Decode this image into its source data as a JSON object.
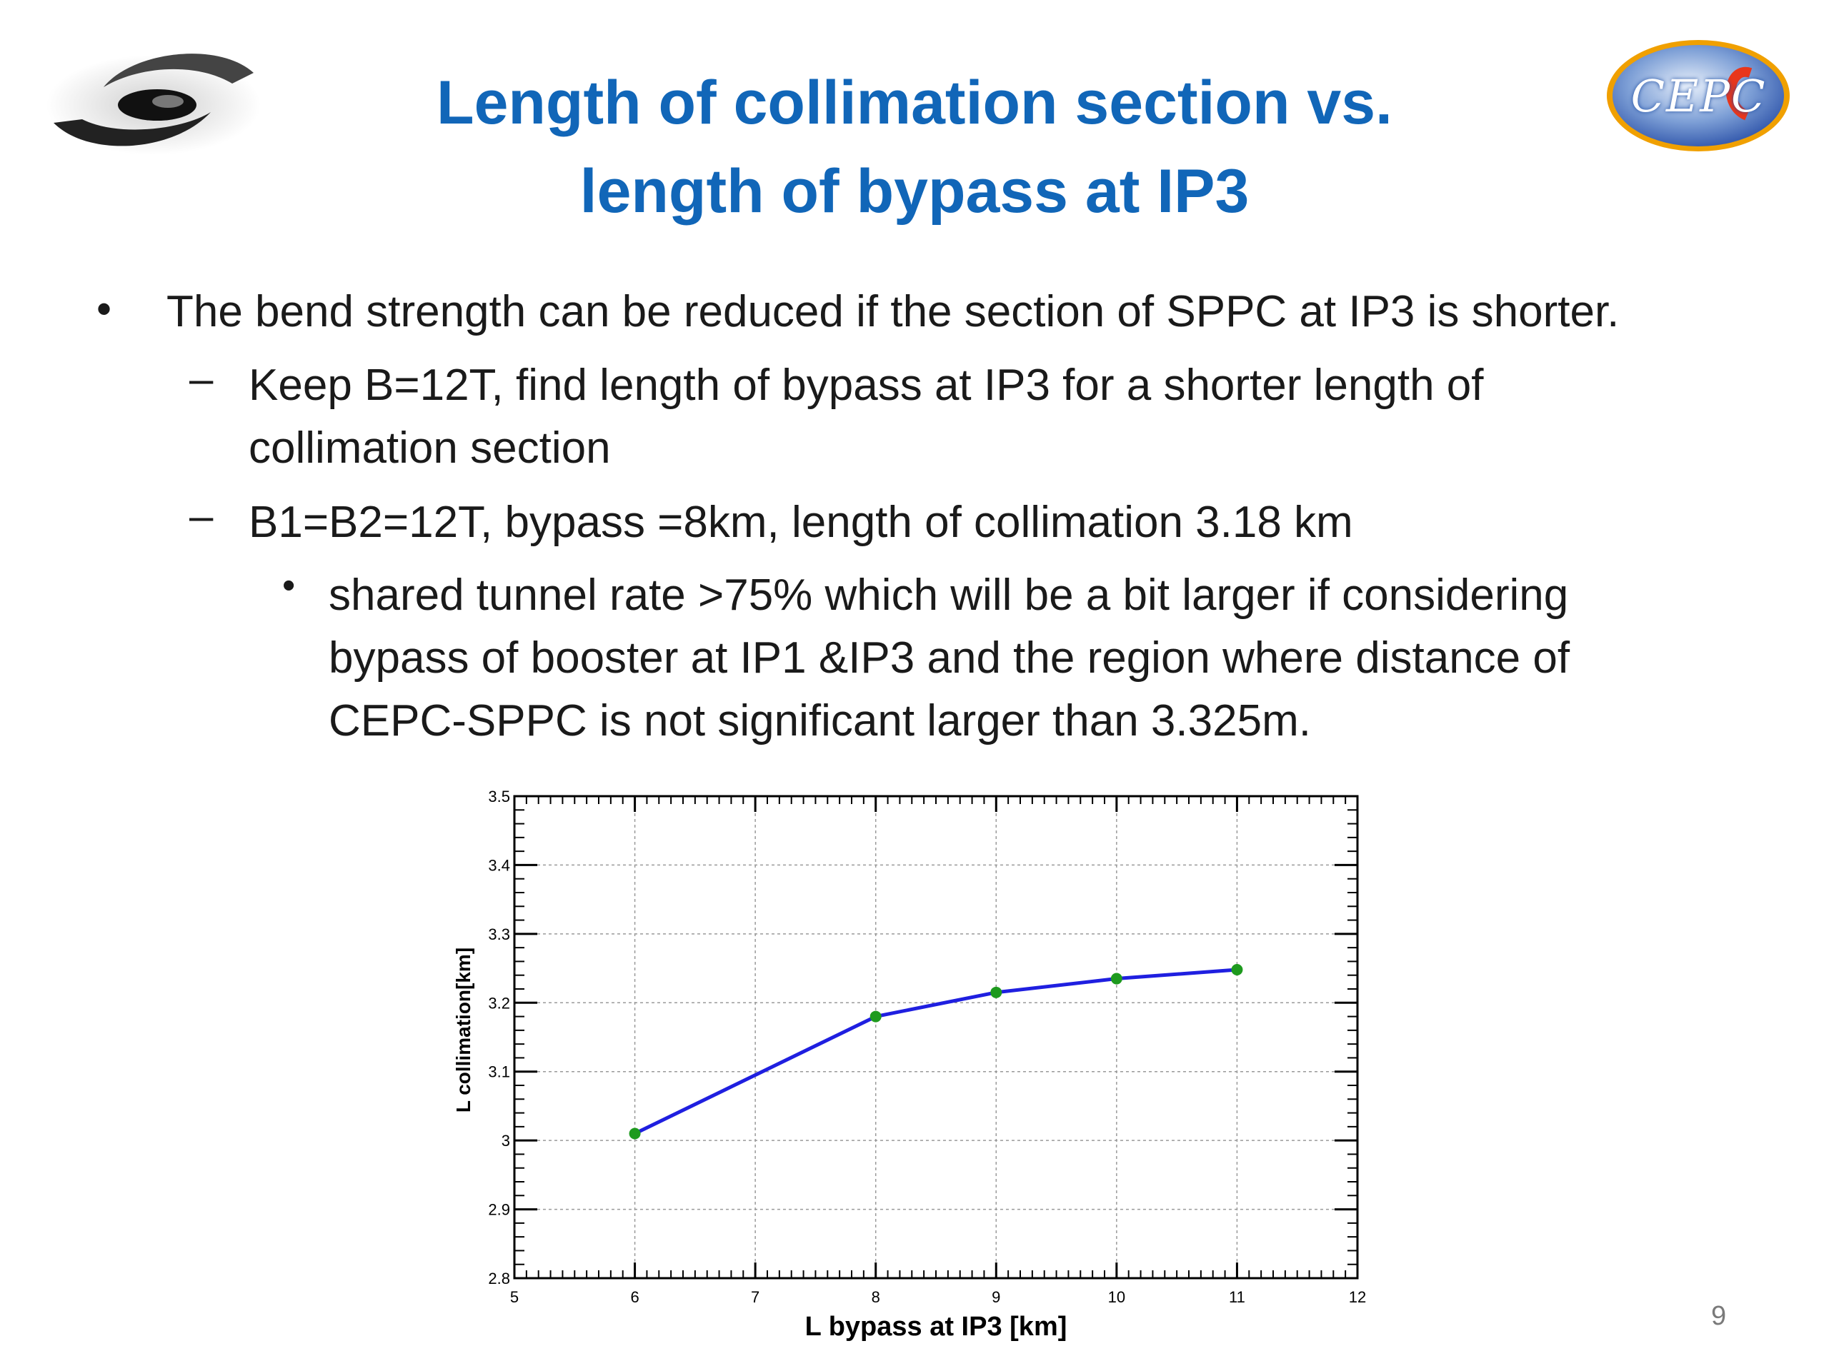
{
  "slide": {
    "title_line1": "Length of collimation section vs.",
    "title_line2": "length of bypass at IP3",
    "page_number": "9",
    "logos": {
      "left": "ihep-logo",
      "right_text": "CEPC"
    },
    "colors": {
      "title": "#1166b8",
      "series": "#1f1fe0",
      "markers": "#1e9a1e"
    }
  },
  "bullets": [
    {
      "level": 1,
      "marker": "•",
      "lines": [
        "The bend strength can be reduced if the section of SPPC at IP3 is shorter."
      ]
    },
    {
      "level": 2,
      "marker": "–",
      "lines": [
        "Keep B=12T, find length of bypass at IP3 for a shorter length of",
        "collimation section"
      ]
    },
    {
      "level": 2,
      "marker": "–",
      "lines": [
        "B1=B2=12T, bypass =8km, length of collimation 3.18 km"
      ]
    },
    {
      "level": 3,
      "marker": "•",
      "lines": [
        "shared tunnel rate >75% which will be a bit larger if considering",
        "bypass of booster at IP1 &IP3 and the region where distance of",
        "CEPC-SPPC is not significant larger than 3.325m."
      ]
    }
  ],
  "chart_data": {
    "type": "line",
    "title": "",
    "xlabel": "L bypass at IP3 [km]",
    "ylabel": "L collimation[km]",
    "xlim": [
      5,
      12
    ],
    "ylim": [
      2.8,
      3.5
    ],
    "xticks": [
      "5",
      "6",
      "7",
      "8",
      "9",
      "10",
      "11",
      "12"
    ],
    "yticks": [
      "2.8",
      "2.9",
      "3",
      "3.1",
      "3.2",
      "3.3",
      "3.4",
      "3.5"
    ],
    "grid": true,
    "series": [
      {
        "x": [
          6,
          8,
          9,
          10,
          11
        ],
        "y": [
          3.01,
          3.18,
          3.215,
          3.235,
          3.248
        ]
      }
    ]
  }
}
